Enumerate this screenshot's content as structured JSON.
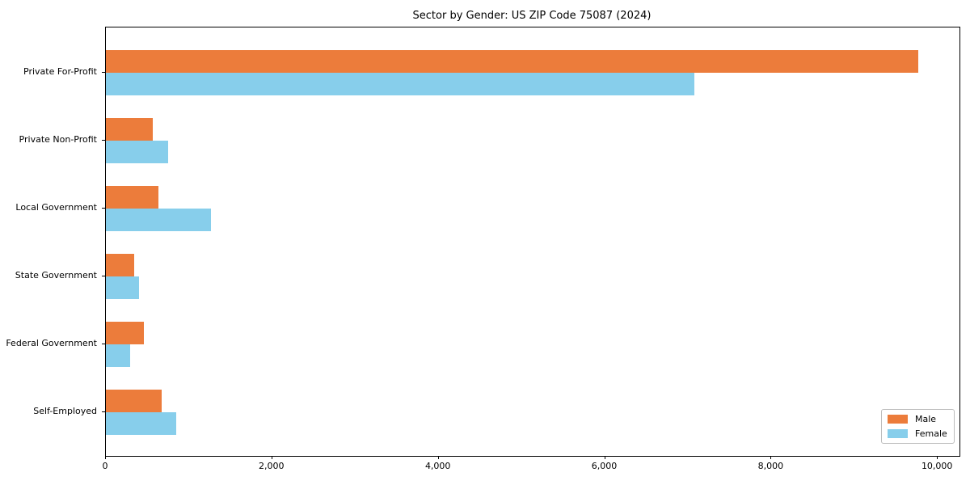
{
  "chart_data": {
    "type": "bar",
    "orientation": "horizontal",
    "title": "Sector by Gender: US ZIP Code 75087 (2024)",
    "categories": [
      "Private For-Profit",
      "Private Non-Profit",
      "Local Government",
      "State Government",
      "Federal Government",
      "Self-Employed"
    ],
    "series": [
      {
        "name": "Male",
        "color": "#EC7C3B",
        "values": [
          9760,
          560,
          630,
          340,
          460,
          670
        ]
      },
      {
        "name": "Female",
        "color": "#87CEEB",
        "values": [
          7070,
          750,
          1260,
          400,
          290,
          840
        ]
      }
    ],
    "xlabel": "",
    "ylabel": "",
    "xlim": [
      0,
      10260
    ],
    "xticks": [
      0,
      2000,
      4000,
      6000,
      8000,
      10000
    ],
    "xtick_labels": [
      "0",
      "2,000",
      "4,000",
      "6,000",
      "8,000",
      "10,000"
    ],
    "legend_position": "lower right",
    "grid": false,
    "colors": {
      "male": "#EC7C3B",
      "female": "#87CEEB",
      "axis": "#000000",
      "background": "#ffffff"
    }
  }
}
